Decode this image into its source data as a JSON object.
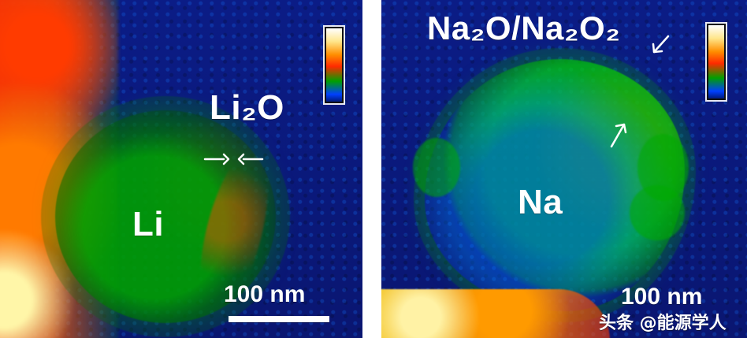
{
  "left_panel": {
    "label_top": "Li₂O",
    "label_center": "Li",
    "scale": "100 nm"
  },
  "right_panel": {
    "label_top": "Na₂O/Na₂O₂",
    "label_center": "Na",
    "scale": "100 nm"
  },
  "watermark": "头条 @能源学人"
}
